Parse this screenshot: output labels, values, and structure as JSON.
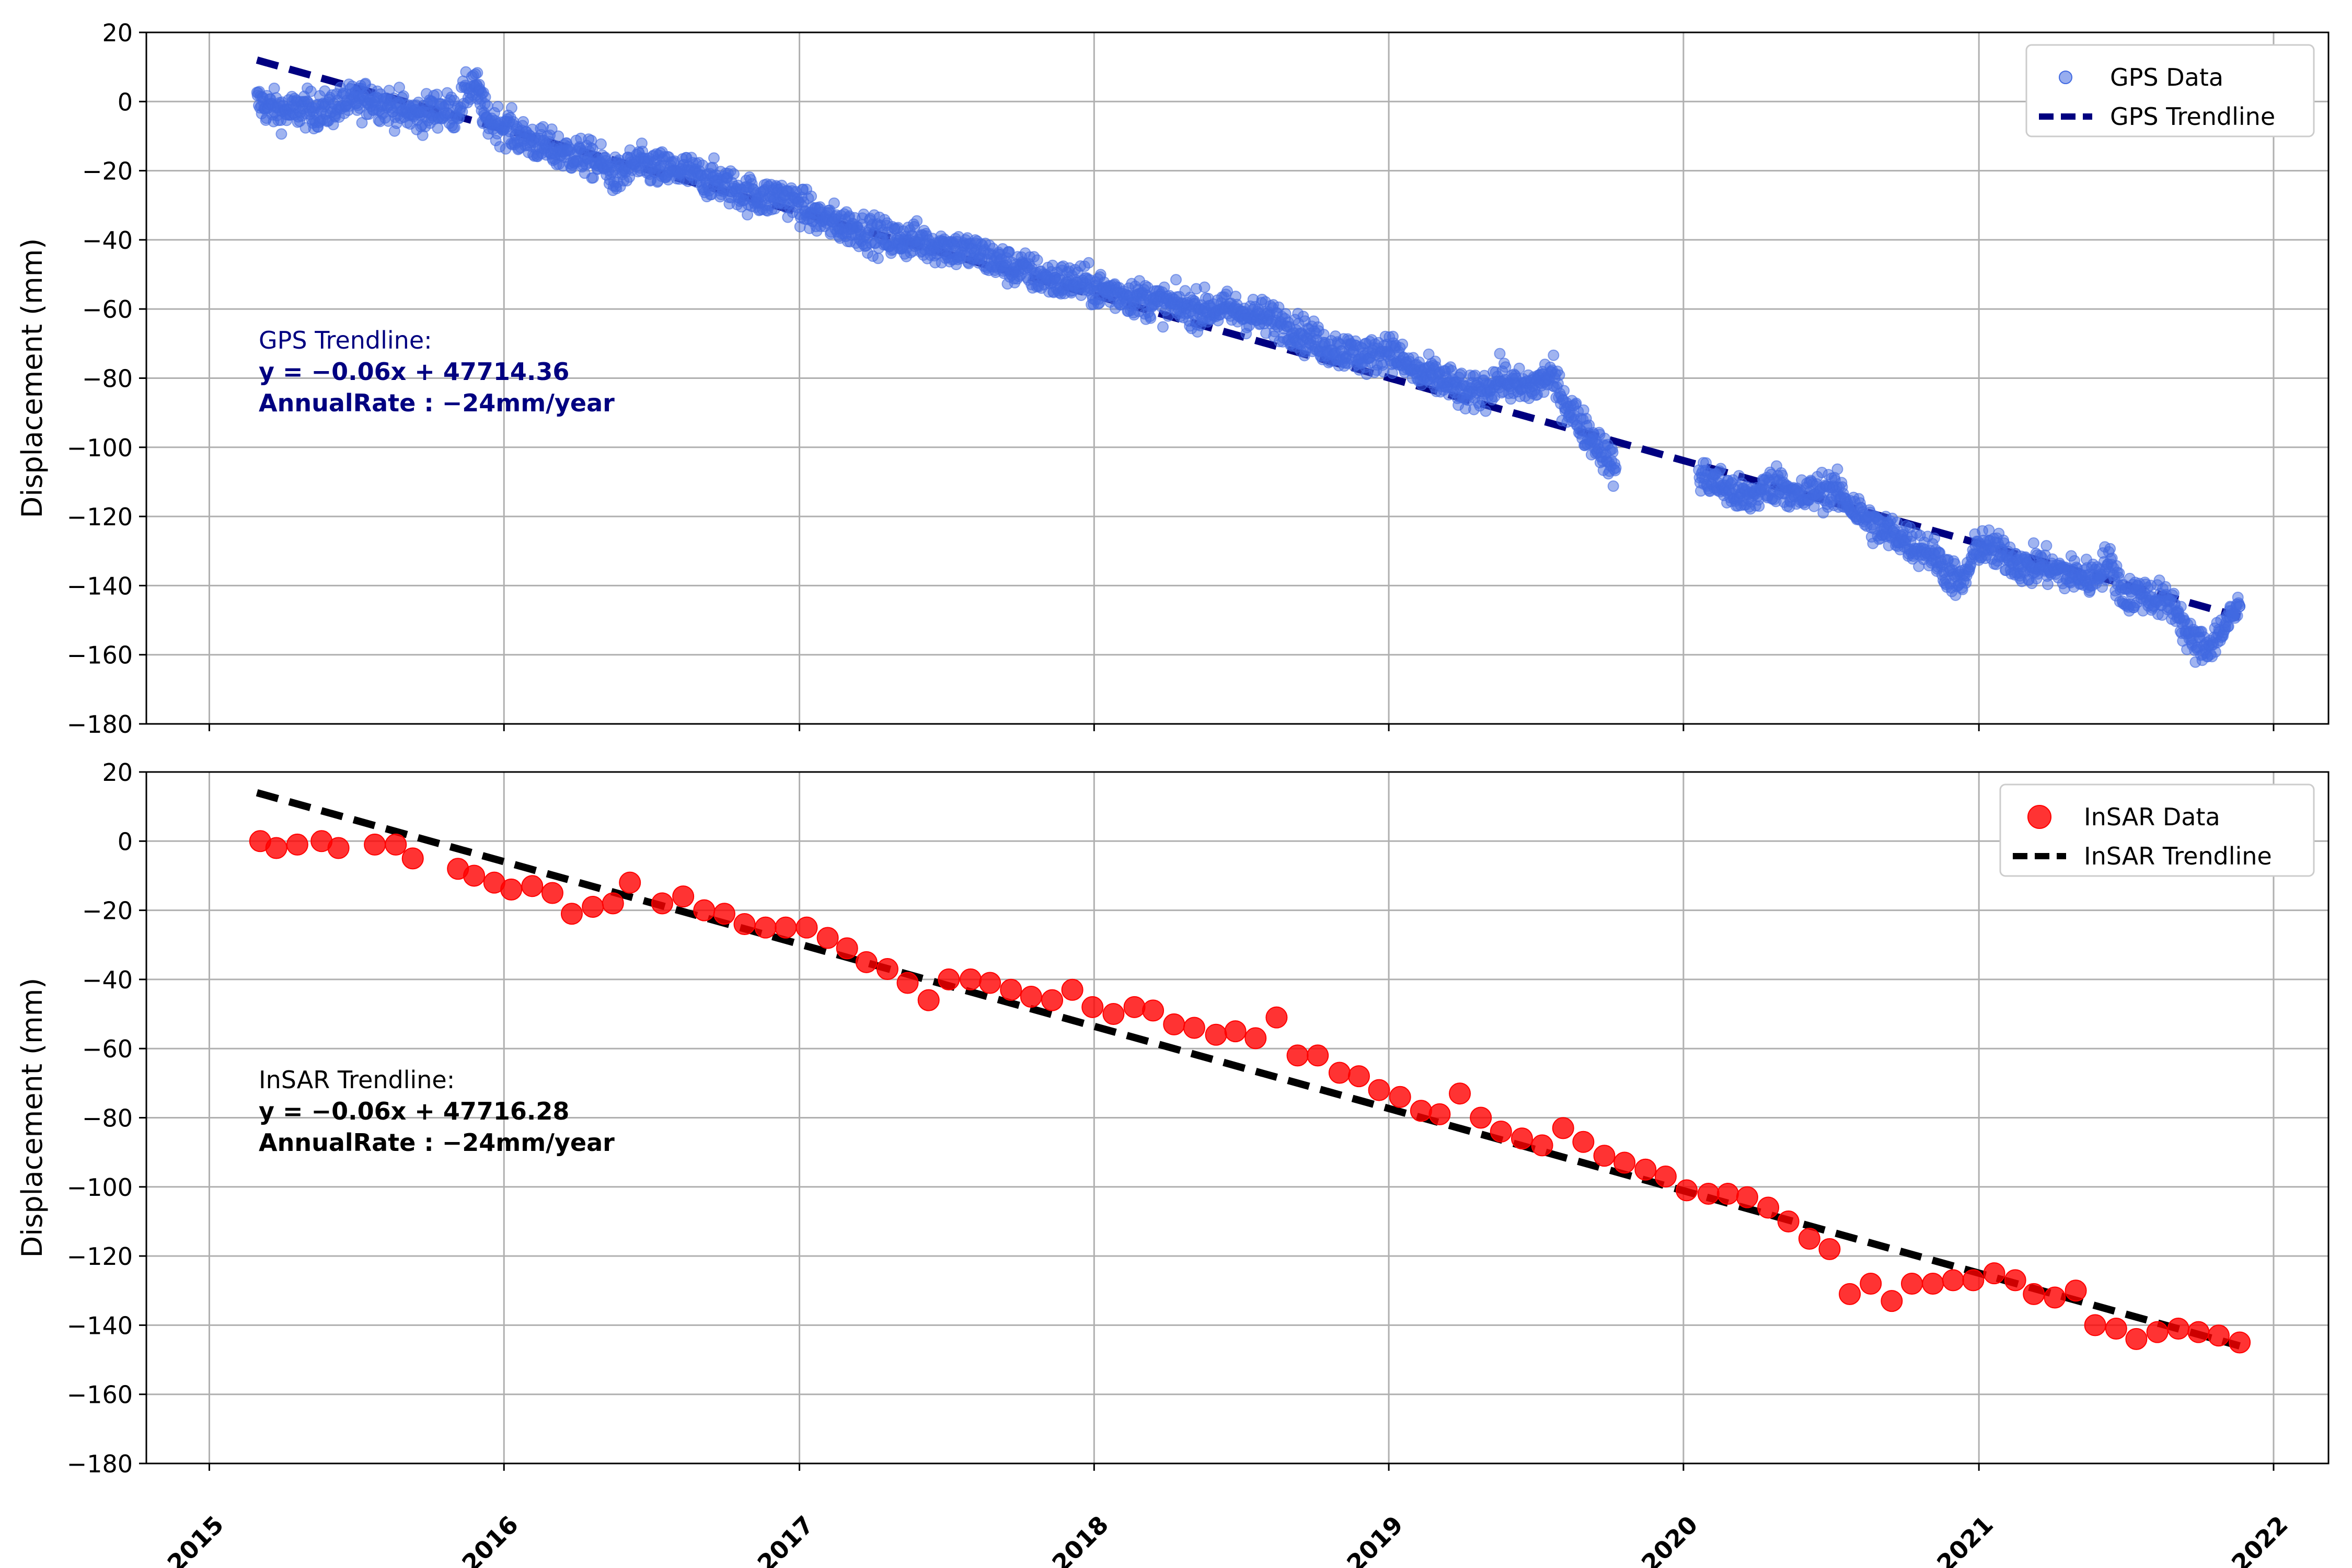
{
  "chart_data": [
    {
      "type": "scatter",
      "ylabel": "Displacement (mm)",
      "xlabel": "",
      "xlim": [
        "2014-10-15",
        "2022-03-10"
      ],
      "ylim": [
        -180,
        20
      ],
      "yticks": [
        20,
        0,
        -20,
        -40,
        -60,
        -80,
        -100,
        -120,
        -140,
        -160,
        -180
      ],
      "ytick_labels": [
        "20",
        "0",
        "−20",
        "−40",
        "−60",
        "−80",
        "−100",
        "−120",
        "−140",
        "−160",
        "−180"
      ],
      "xticks": [
        "2015-01-01",
        "2016-01-01",
        "2017-01-01",
        "2018-01-01",
        "2019-01-01",
        "2020-01-01",
        "2021-01-01",
        "2022-01-01"
      ],
      "grid": true,
      "legend_position": "top-right",
      "legend": [
        "GPS Data",
        "GPS Trendline"
      ],
      "colors": {
        "points": "#4169e1",
        "trend": "#000080",
        "annotation": "#000080"
      },
      "annotation": {
        "title": "GPS Trendline:",
        "equation": "y = −0.06x + 47714.36",
        "rate": "AnnualRate : −24mm/year"
      },
      "trendline": {
        "start": {
          "x": "2015-03-01",
          "y": 12
        },
        "end": {
          "x": "2021-11-20",
          "y": -149
        }
      },
      "series": [
        {
          "name": "GPS Data",
          "points": [
            [
              "2015-03-01",
              0
            ],
            [
              "2015-03-20",
              -2
            ],
            [
              "2015-04-10",
              -3
            ],
            [
              "2015-05-01",
              -2
            ],
            [
              "2015-05-20",
              -3
            ],
            [
              "2015-06-10",
              -1
            ],
            [
              "2015-07-01",
              0
            ],
            [
              "2015-07-20",
              1
            ],
            [
              "2015-08-10",
              -1
            ],
            [
              "2015-09-01",
              -3
            ],
            [
              "2015-09-20",
              -4
            ],
            [
              "2015-10-10",
              -2
            ],
            [
              "2015-11-01",
              -3
            ],
            [
              "2015-11-25",
              6
            ],
            [
              "2015-12-10",
              -5
            ],
            [
              "2016-01-01",
              -7
            ],
            [
              "2016-01-20",
              -10
            ],
            [
              "2016-02-10",
              -12
            ],
            [
              "2016-03-01",
              -14
            ],
            [
              "2016-03-20",
              -15
            ],
            [
              "2016-04-10",
              -16
            ],
            [
              "2016-05-01",
              -18
            ],
            [
              "2016-05-20",
              -22
            ],
            [
              "2016-06-10",
              -18
            ],
            [
              "2016-07-01",
              -19
            ],
            [
              "2016-07-20",
              -20
            ],
            [
              "2016-08-10",
              -20
            ],
            [
              "2016-09-01",
              -22
            ],
            [
              "2016-09-20",
              -23
            ],
            [
              "2016-10-10",
              -25
            ],
            [
              "2016-11-01",
              -27
            ],
            [
              "2016-11-20",
              -28
            ],
            [
              "2016-12-10",
              -27
            ],
            [
              "2017-01-01",
              -30
            ],
            [
              "2017-01-20",
              -33
            ],
            [
              "2017-02-10",
              -35
            ],
            [
              "2017-03-01",
              -36
            ],
            [
              "2017-03-20",
              -37
            ],
            [
              "2017-04-10",
              -39
            ],
            [
              "2017-05-01",
              -40
            ],
            [
              "2017-05-20",
              -40
            ],
            [
              "2017-06-10",
              -41
            ],
            [
              "2017-07-01",
              -42
            ],
            [
              "2017-07-20",
              -43
            ],
            [
              "2017-08-10",
              -44
            ],
            [
              "2017-09-01",
              -46
            ],
            [
              "2017-09-20",
              -48
            ],
            [
              "2017-10-10",
              -49
            ],
            [
              "2017-11-01",
              -51
            ],
            [
              "2017-11-20",
              -52
            ],
            [
              "2017-12-10",
              -52
            ],
            [
              "2018-01-01",
              -54
            ],
            [
              "2018-01-20",
              -55
            ],
            [
              "2018-02-10",
              -56
            ],
            [
              "2018-03-01",
              -57
            ],
            [
              "2018-03-20",
              -58
            ],
            [
              "2018-04-10",
              -59
            ],
            [
              "2018-05-01",
              -60
            ],
            [
              "2018-05-20",
              -60
            ],
            [
              "2018-06-10",
              -60
            ],
            [
              "2018-07-01",
              -61
            ],
            [
              "2018-07-20",
              -62
            ],
            [
              "2018-08-10",
              -63
            ],
            [
              "2018-09-01",
              -65
            ],
            [
              "2018-09-20",
              -68
            ],
            [
              "2018-10-10",
              -70
            ],
            [
              "2018-11-01",
              -72
            ],
            [
              "2018-11-20",
              -73
            ],
            [
              "2018-12-10",
              -74
            ],
            [
              "2019-01-01",
              -71
            ],
            [
              "2019-01-20",
              -76
            ],
            [
              "2019-02-10",
              -79
            ],
            [
              "2019-03-01",
              -80
            ],
            [
              "2019-03-20",
              -82
            ],
            [
              "2019-04-10",
              -85
            ],
            [
              "2019-05-01",
              -83
            ],
            [
              "2019-05-20",
              -80
            ],
            [
              "2019-06-10",
              -83
            ],
            [
              "2019-07-01",
              -82
            ],
            [
              "2019-07-20",
              -79
            ],
            [
              "2019-08-10",
              -88
            ],
            [
              "2019-09-01",
              -95
            ],
            [
              "2019-09-20",
              -100
            ],
            [
              "2019-10-10",
              -107
            ],
            [
              "2020-01-20",
              -108
            ],
            [
              "2020-02-10",
              -110
            ],
            [
              "2020-03-01",
              -113
            ],
            [
              "2020-03-20",
              -115
            ],
            [
              "2020-04-10",
              -112
            ],
            [
              "2020-05-01",
              -110
            ],
            [
              "2020-05-20",
              -115
            ],
            [
              "2020-06-10",
              -113
            ],
            [
              "2020-07-01",
              -112
            ],
            [
              "2020-07-20",
              -115
            ],
            [
              "2020-08-10",
              -120
            ],
            [
              "2020-09-01",
              -124
            ],
            [
              "2020-09-20",
              -125
            ],
            [
              "2020-10-10",
              -128
            ],
            [
              "2020-11-01",
              -130
            ],
            [
              "2020-11-20",
              -135
            ],
            [
              "2020-12-10",
              -140
            ],
            [
              "2021-01-01",
              -128
            ],
            [
              "2021-01-20",
              -130
            ],
            [
              "2021-02-10",
              -132
            ],
            [
              "2021-03-01",
              -135
            ],
            [
              "2021-03-20",
              -134
            ],
            [
              "2021-04-10",
              -136
            ],
            [
              "2021-05-01",
              -137
            ],
            [
              "2021-05-20",
              -138
            ],
            [
              "2021-06-10",
              -133
            ],
            [
              "2021-07-01",
              -143
            ],
            [
              "2021-07-20",
              -142
            ],
            [
              "2021-08-10",
              -144
            ],
            [
              "2021-09-01",
              -146
            ],
            [
              "2021-09-20",
              -156
            ],
            [
              "2021-10-10",
              -158
            ],
            [
              "2021-11-01",
              -152
            ],
            [
              "2021-11-20",
              -146
            ]
          ]
        }
      ]
    },
    {
      "type": "scatter",
      "ylabel": "Displacement (mm)",
      "xlabel": "",
      "xlim": [
        "2014-10-15",
        "2022-03-10"
      ],
      "ylim": [
        -180,
        20
      ],
      "yticks": [
        20,
        0,
        -20,
        -40,
        -60,
        -80,
        -100,
        -120,
        -140,
        -160,
        -180
      ],
      "ytick_labels": [
        "20",
        "0",
        "−20",
        "−40",
        "−60",
        "−80",
        "−100",
        "−120",
        "−140",
        "−160",
        "−180"
      ],
      "xticks": [
        "2015-01-01",
        "2016-01-01",
        "2017-01-01",
        "2018-01-01",
        "2019-01-01",
        "2020-01-01",
        "2021-01-01",
        "2022-01-01"
      ],
      "xtick_labels": [
        "2015",
        "2016",
        "2017",
        "2018",
        "2019",
        "2020",
        "2021",
        "2022"
      ],
      "grid": true,
      "legend_position": "top-right",
      "legend": [
        "InSAR Data",
        "InSAR Trendline"
      ],
      "colors": {
        "points": "#ff0000",
        "trend": "#000000",
        "annotation": "#000000"
      },
      "annotation": {
        "title": "InSAR Trendline:",
        "equation": "y = −0.06x + 47716.28",
        "rate": "AnnualRate : −24mm/year"
      },
      "trendline": {
        "start": {
          "x": "2015-03-01",
          "y": 14
        },
        "end": {
          "x": "2021-11-20",
          "y": -146
        }
      },
      "series": [
        {
          "name": "InSAR Data",
          "points": [
            [
              "2015-03-05",
              0
            ],
            [
              "2015-03-25",
              -2
            ],
            [
              "2015-04-20",
              -1
            ],
            [
              "2015-05-20",
              0
            ],
            [
              "2015-06-10",
              -2
            ],
            [
              "2015-07-25",
              -1
            ],
            [
              "2015-08-20",
              -1
            ],
            [
              "2015-09-10",
              -5
            ],
            [
              "2015-11-05",
              -8
            ],
            [
              "2015-11-25",
              -10
            ],
            [
              "2015-12-20",
              -12
            ],
            [
              "2016-01-10",
              -14
            ],
            [
              "2016-02-05",
              -13
            ],
            [
              "2016-03-01",
              -15
            ],
            [
              "2016-03-25",
              -21
            ],
            [
              "2016-04-20",
              -19
            ],
            [
              "2016-05-15",
              -18
            ],
            [
              "2016-06-05",
              -12
            ],
            [
              "2016-07-15",
              -18
            ],
            [
              "2016-08-10",
              -16
            ],
            [
              "2016-09-05",
              -20
            ],
            [
              "2016-09-30",
              -21
            ],
            [
              "2016-10-25",
              -24
            ],
            [
              "2016-11-20",
              -25
            ],
            [
              "2016-12-15",
              -25
            ],
            [
              "2017-01-10",
              -25
            ],
            [
              "2017-02-05",
              -28
            ],
            [
              "2017-03-01",
              -31
            ],
            [
              "2017-03-25",
              -35
            ],
            [
              "2017-04-20",
              -37
            ],
            [
              "2017-05-15",
              -41
            ],
            [
              "2017-06-10",
              -46
            ],
            [
              "2017-07-05",
              -40
            ],
            [
              "2017-08-01",
              -40
            ],
            [
              "2017-08-25",
              -41
            ],
            [
              "2017-09-20",
              -43
            ],
            [
              "2017-10-15",
              -45
            ],
            [
              "2017-11-10",
              -46
            ],
            [
              "2017-12-05",
              -43
            ],
            [
              "2017-12-30",
              -48
            ],
            [
              "2018-01-25",
              -50
            ],
            [
              "2018-02-20",
              -48
            ],
            [
              "2018-03-15",
              -49
            ],
            [
              "2018-04-10",
              -53
            ],
            [
              "2018-05-05",
              -54
            ],
            [
              "2018-06-01",
              -56
            ],
            [
              "2018-06-25",
              -55
            ],
            [
              "2018-07-20",
              -57
            ],
            [
              "2018-08-15",
              -51
            ],
            [
              "2018-09-10",
              -62
            ],
            [
              "2018-10-05",
              -62
            ],
            [
              "2018-11-01",
              -67
            ],
            [
              "2018-11-25",
              -68
            ],
            [
              "2018-12-20",
              -72
            ],
            [
              "2019-01-15",
              -74
            ],
            [
              "2019-02-10",
              -78
            ],
            [
              "2019-03-05",
              -79
            ],
            [
              "2019-03-30",
              -73
            ],
            [
              "2019-04-25",
              -80
            ],
            [
              "2019-05-20",
              -84
            ],
            [
              "2019-06-15",
              -86
            ],
            [
              "2019-07-10",
              -88
            ],
            [
              "2019-08-05",
              -83
            ],
            [
              "2019-08-30",
              -87
            ],
            [
              "2019-09-25",
              -91
            ],
            [
              "2019-10-20",
              -93
            ],
            [
              "2019-11-15",
              -95
            ],
            [
              "2019-12-10",
              -97
            ],
            [
              "2020-01-05",
              -101
            ],
            [
              "2020-02-01",
              -102
            ],
            [
              "2020-02-25",
              -102
            ],
            [
              "2020-03-20",
              -103
            ],
            [
              "2020-04-15",
              -106
            ],
            [
              "2020-05-10",
              -110
            ],
            [
              "2020-06-05",
              -115
            ],
            [
              "2020-06-30",
              -118
            ],
            [
              "2020-07-25",
              -131
            ],
            [
              "2020-08-20",
              -128
            ],
            [
              "2020-09-15",
              -133
            ],
            [
              "2020-10-10",
              -128
            ],
            [
              "2020-11-05",
              -128
            ],
            [
              "2020-11-30",
              -127
            ],
            [
              "2020-12-25",
              -127
            ],
            [
              "2021-01-20",
              -125
            ],
            [
              "2021-02-15",
              -127
            ],
            [
              "2021-03-10",
              -131
            ],
            [
              "2021-04-05",
              -132
            ],
            [
              "2021-05-01",
              -130
            ],
            [
              "2021-05-25",
              -140
            ],
            [
              "2021-06-20",
              -141
            ],
            [
              "2021-07-15",
              -144
            ],
            [
              "2021-08-10",
              -142
            ],
            [
              "2021-09-05",
              -141
            ],
            [
              "2021-09-30",
              -142
            ],
            [
              "2021-10-25",
              -143
            ],
            [
              "2021-11-20",
              -145
            ]
          ]
        }
      ]
    }
  ]
}
